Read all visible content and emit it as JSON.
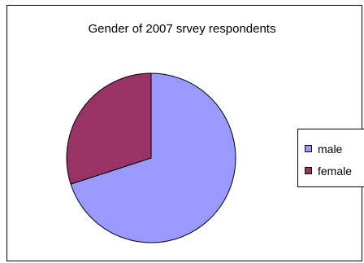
{
  "chart_data": {
    "type": "pie",
    "title": "Gender of 2007 srvey respondents",
    "categories": [
      "male",
      "female"
    ],
    "values": [
      70,
      30
    ],
    "colors": [
      "#9999ff",
      "#993366"
    ],
    "legend_position": "right"
  }
}
